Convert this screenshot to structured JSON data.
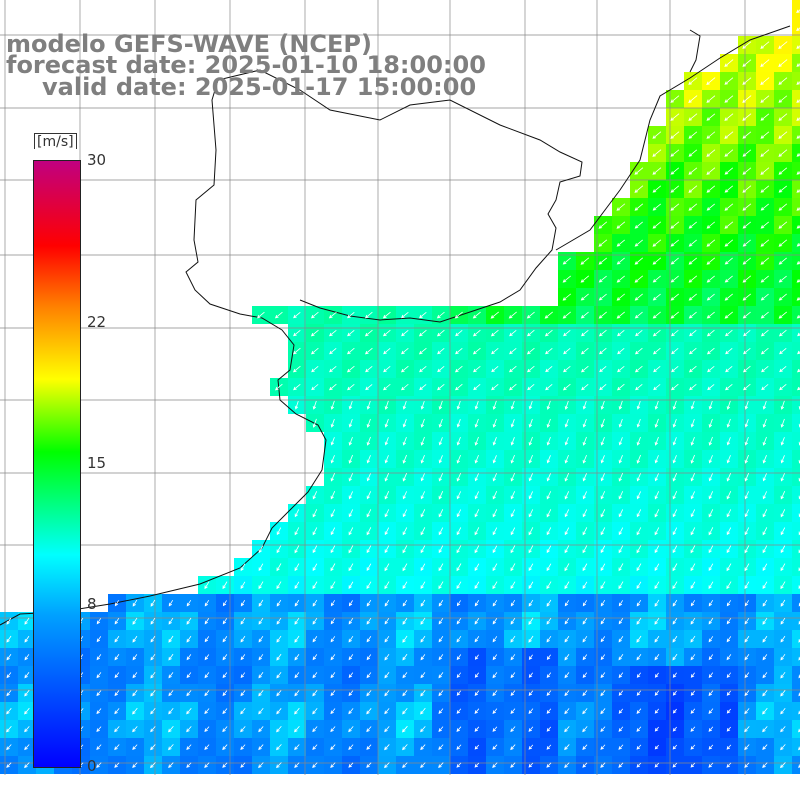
{
  "header": {
    "line1": "modelo GEFS-WAVE (NCEP)",
    "line2": "forecast date: 2025-01-10 18:00:00",
    "line3": "valid date: 2025-01-17 15:00:00"
  },
  "legend": {
    "unit": "[m/s]",
    "ticks": [
      {
        "label": "30",
        "value": 30
      },
      {
        "label": "22",
        "value": 22
      },
      {
        "label": "15",
        "value": 15
      },
      {
        "label": "8",
        "value": 8
      },
      {
        "label": "0",
        "value": 0
      }
    ],
    "colors": [
      "#0000ff",
      "#00a0ff",
      "#00ffff",
      "#00ff00",
      "#ffff00",
      "#ff8000",
      "#ff0000",
      "#c00080"
    ]
  },
  "map": {
    "field": "wind speed",
    "land_color": "#ffffff",
    "grid_color": "#888888",
    "arrow_color": "#ffffff"
  }
}
